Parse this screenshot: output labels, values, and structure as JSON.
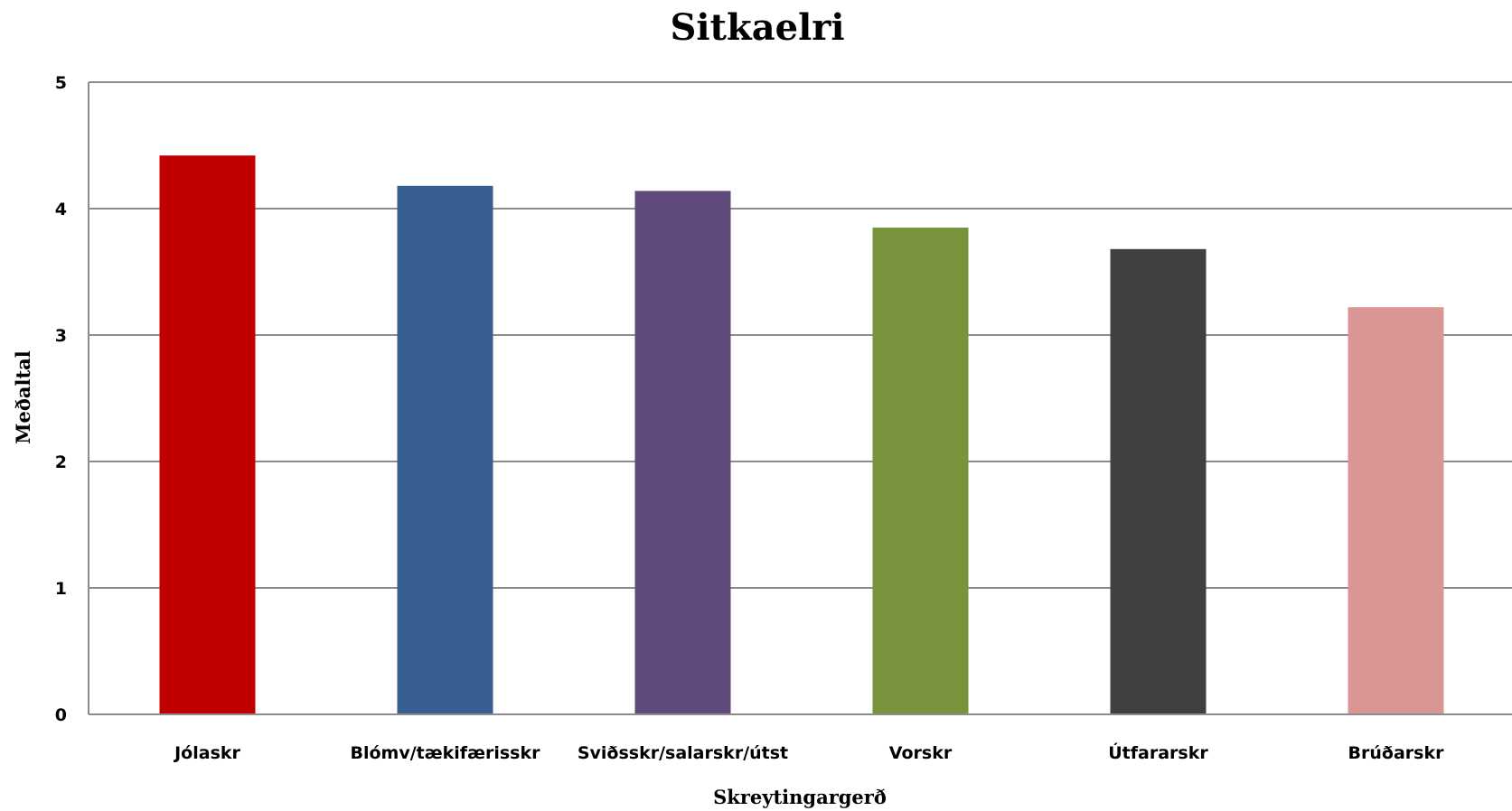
{
  "chart_data": {
    "type": "bar",
    "title": "Sitkaelri",
    "xlabel": "Skreytingargerð",
    "ylabel": "Meðaltal",
    "ylim": [
      0,
      5
    ],
    "yticks": [
      0,
      1,
      2,
      3,
      4,
      5
    ],
    "grid": true,
    "categories": [
      "Jólaskr",
      "Blómv/tækifærisskr",
      "Sviðsskr/salarskr/útst",
      "Vorskr",
      "Útfararskr",
      "Brúðarskr"
    ],
    "values": [
      4.42,
      4.18,
      4.14,
      3.85,
      3.68,
      3.22
    ],
    "colors": [
      "#c00000",
      "#375f91",
      "#604a7b",
      "#77933c",
      "#404040",
      "#d99694"
    ]
  }
}
